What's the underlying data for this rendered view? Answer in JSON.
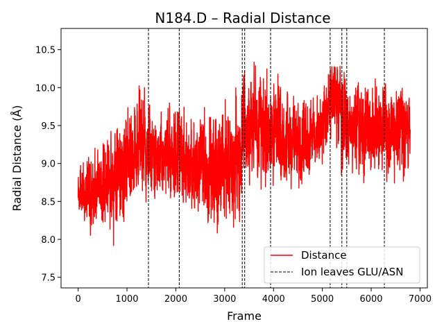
{
  "chart_data": {
    "type": "line",
    "title": "N184.D – Radial Distance",
    "xlabel": "Frame",
    "ylabel": "Radial Distance (Å)",
    "xlim": [
      -350,
      7150
    ],
    "ylim": [
      7.36,
      10.78
    ],
    "xticks": [
      0,
      1000,
      2000,
      3000,
      4000,
      5000,
      6000,
      7000
    ],
    "yticks": [
      7.5,
      8.0,
      8.5,
      9.0,
      9.5,
      10.0,
      10.5
    ],
    "ytick_labels": [
      "7.5",
      "8.0",
      "8.5",
      "9.0",
      "9.5",
      "10.0",
      "10.5"
    ],
    "grid": false,
    "legend_position": "lower-right",
    "series": [
      {
        "name": "Distance",
        "color": "#ff0000",
        "style": "solid",
        "frames": 6800,
        "envelope": {
          "frame": [
            0,
            200,
            500,
            800,
            1000,
            1300,
            1450,
            1700,
            2060,
            2400,
            2700,
            3000,
            3300,
            3450,
            3700,
            3950,
            4300,
            4700,
            5000,
            5150,
            5250,
            5400,
            5500,
            5800,
            6260,
            6500,
            6780
          ],
          "low": [
            8.1,
            7.9,
            8.0,
            7.55,
            8.2,
            8.3,
            8.4,
            8.4,
            8.3,
            8.2,
            7.7,
            8.0,
            7.9,
            8.6,
            8.5,
            8.3,
            8.4,
            8.6,
            8.9,
            9.0,
            8.9,
            8.7,
            8.6,
            8.5,
            8.7,
            8.4,
            8.7
          ],
          "high": [
            9.2,
            9.3,
            9.5,
            9.8,
            10.0,
            10.3,
            10.2,
            10.1,
            10.0,
            9.9,
            10.0,
            10.2,
            10.4,
            10.6,
            10.5,
            10.5,
            10.2,
            10.1,
            10.2,
            10.6,
            10.6,
            10.5,
            10.4,
            10.3,
            10.4,
            10.2,
            10.25
          ],
          "mean": [
            8.6,
            8.6,
            8.7,
            8.8,
            9.0,
            9.2,
            9.2,
            9.1,
            9.0,
            8.9,
            8.9,
            9.0,
            9.1,
            9.5,
            9.5,
            9.4,
            9.3,
            9.3,
            9.5,
            9.8,
            9.9,
            9.7,
            9.5,
            9.4,
            9.5,
            9.4,
            9.5
          ]
        }
      },
      {
        "name": "Ion leaves GLU/ASN",
        "color": "#000000",
        "style": "dashed",
        "x": [
          1440,
          2070,
          3360,
          3410,
          3940,
          5160,
          5400,
          5500,
          6270
        ]
      }
    ]
  }
}
